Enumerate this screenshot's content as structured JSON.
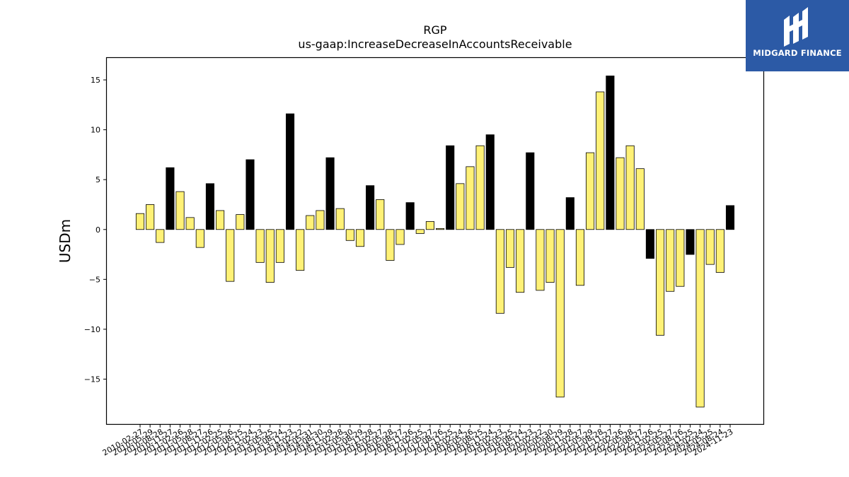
{
  "logo": {
    "text": "MIDGARD FINANCE"
  },
  "chart_data": {
    "type": "bar",
    "title": "RGP",
    "subtitle": "us-gaap:IncreaseDecreaseInAccountsReceivable",
    "ylabel": "USDm",
    "ylim": [
      -19.5,
      17.2
    ],
    "yticks": [
      -15,
      -10,
      -5,
      0,
      5,
      10,
      15
    ],
    "grid": false,
    "colors": {
      "highlight": "#000000",
      "normal": "#fff176",
      "edge": "#000000"
    },
    "categories": [
      "2010-02-27",
      "2010-05-29",
      "2010-08-28",
      "2010-11-27",
      "2011-02-26",
      "2011-05-28",
      "2011-08-27",
      "2011-11-26",
      "2012-02-25",
      "2012-05-26",
      "2012-08-25",
      "2012-11-24",
      "2013-02-23",
      "2013-05-25",
      "2013-08-24",
      "2013-11-23",
      "2014-02-22",
      "2014-05-31",
      "2014-08-30",
      "2014-11-29",
      "2015-02-28",
      "2015-05-30",
      "2015-08-29",
      "2015-11-28",
      "2016-02-27",
      "2016-05-28",
      "2016-08-27",
      "2016-11-26",
      "2017-02-25",
      "2017-05-27",
      "2017-08-26",
      "2017-11-25",
      "2018-02-24",
      "2018-05-26",
      "2018-08-25",
      "2018-11-24",
      "2019-02-23",
      "2019-05-25",
      "2019-08-24",
      "2019-11-23",
      "2020-02-22",
      "2020-05-30",
      "2020-08-29",
      "2020-11-28",
      "2021-02-27",
      "2021-05-29",
      "2021-08-28",
      "2021-11-27",
      "2022-02-26",
      "2022-05-28",
      "2022-08-27",
      "2022-11-26",
      "2023-02-25",
      "2023-05-27",
      "2023-08-26",
      "2023-11-25",
      "2024-02-24",
      "2024-05-25",
      "2024-08-24",
      "2024-11-23"
    ],
    "values": [
      1.6,
      2.5,
      -1.3,
      6.2,
      3.8,
      1.2,
      -1.8,
      4.6,
      1.9,
      -5.2,
      1.5,
      7.0,
      -3.3,
      -5.3,
      -3.3,
      11.6,
      -4.1,
      1.4,
      1.9,
      7.2,
      2.1,
      -1.1,
      -1.7,
      4.4,
      3.0,
      -3.1,
      -1.5,
      2.7,
      -0.4,
      0.8,
      0.1,
      8.4,
      4.6,
      6.3,
      8.4,
      9.5,
      -8.4,
      -3.8,
      -6.3,
      7.7,
      -6.1,
      -5.3,
      -16.8,
      3.2,
      -5.6,
      7.7,
      13.8,
      15.4,
      7.2,
      8.4,
      6.1,
      -2.9,
      -10.6,
      -6.2,
      -5.7,
      -2.5,
      -17.8,
      -3.5,
      -4.3,
      2.4
    ],
    "highlight": [
      false,
      false,
      false,
      true,
      false,
      false,
      false,
      true,
      false,
      false,
      false,
      true,
      false,
      false,
      false,
      true,
      false,
      false,
      false,
      true,
      false,
      false,
      false,
      true,
      false,
      false,
      false,
      true,
      false,
      false,
      false,
      true,
      false,
      false,
      false,
      true,
      false,
      false,
      false,
      true,
      false,
      false,
      false,
      true,
      false,
      false,
      false,
      true,
      false,
      false,
      false,
      true,
      false,
      false,
      false,
      true,
      false,
      false,
      false,
      true
    ]
  }
}
